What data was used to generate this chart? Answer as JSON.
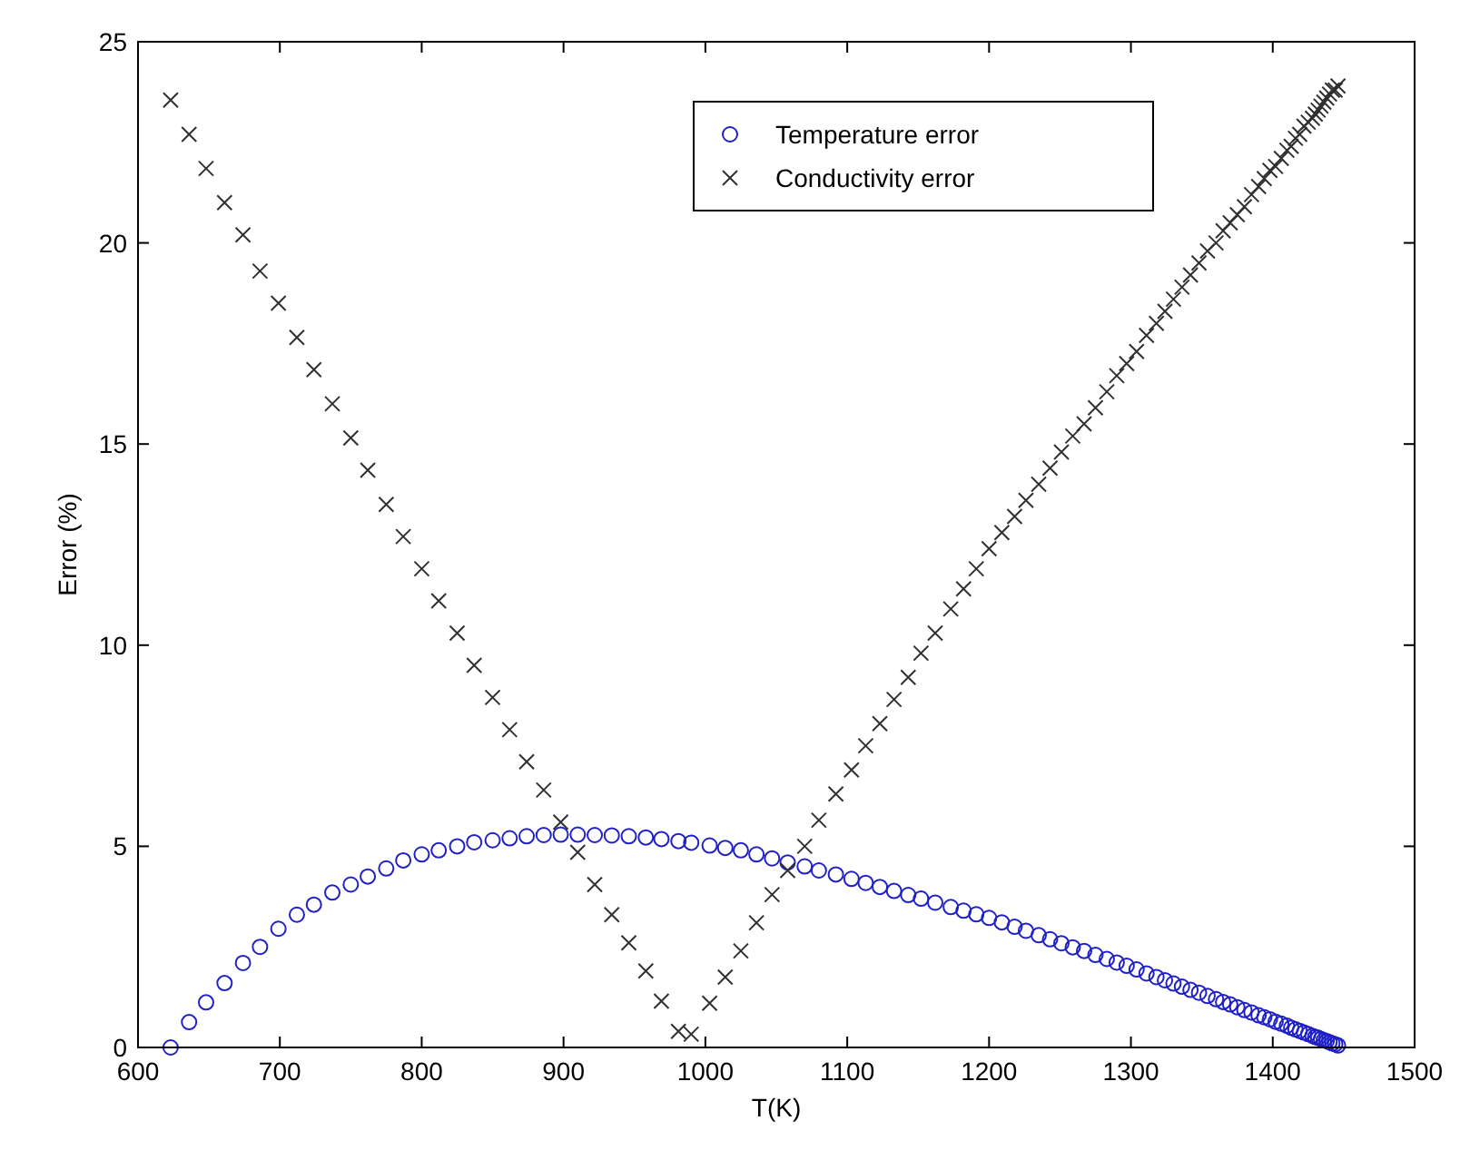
{
  "chart_data": {
    "type": "scatter",
    "xlabel": "T(K)",
    "ylabel": "Error (%)",
    "xlim": [
      600,
      1500
    ],
    "ylim": [
      0,
      25
    ],
    "xticks": [
      600,
      700,
      800,
      900,
      1000,
      1100,
      1200,
      1300,
      1400,
      1500
    ],
    "yticks": [
      0,
      5,
      10,
      15,
      20,
      25
    ],
    "grid": false,
    "legend": "top right",
    "x": [
      623,
      636,
      648,
      661,
      674,
      686,
      699,
      712,
      724,
      737,
      750,
      762,
      775,
      787,
      800,
      812,
      825,
      837,
      850,
      862,
      874,
      886,
      898,
      910,
      922,
      934,
      946,
      958,
      969,
      981,
      990,
      1003,
      1014,
      1025,
      1036,
      1047,
      1058,
      1070,
      1080,
      1092,
      1103,
      1113,
      1123,
      1133,
      1143,
      1152,
      1162,
      1173,
      1182,
      1191,
      1200,
      1209,
      1218,
      1226,
      1235,
      1243,
      1251,
      1259,
      1267,
      1275,
      1283,
      1290,
      1297,
      1304,
      1311,
      1318,
      1324,
      1330,
      1336,
      1342,
      1348,
      1354,
      1360,
      1365,
      1370,
      1375,
      1380,
      1385,
      1390,
      1394,
      1398,
      1402,
      1406,
      1410,
      1413,
      1416,
      1419,
      1422,
      1425,
      1428,
      1430,
      1432,
      1434,
      1436,
      1438,
      1440,
      1442,
      1444,
      1446
    ],
    "series": [
      {
        "name": "Temperature error",
        "color": "#2020c8",
        "marker": "circle",
        "values": [
          0.0,
          0.63,
          1.12,
          1.6,
          2.1,
          2.5,
          2.95,
          3.3,
          3.55,
          3.85,
          4.05,
          4.25,
          4.45,
          4.65,
          4.8,
          4.9,
          5.0,
          5.1,
          5.15,
          5.2,
          5.25,
          5.28,
          5.29,
          5.29,
          5.28,
          5.27,
          5.25,
          5.22,
          5.18,
          5.13,
          5.09,
          5.02,
          4.96,
          4.9,
          4.8,
          4.7,
          4.6,
          4.5,
          4.4,
          4.3,
          4.19,
          4.09,
          3.99,
          3.89,
          3.79,
          3.7,
          3.6,
          3.49,
          3.4,
          3.31,
          3.22,
          3.11,
          3.0,
          2.9,
          2.79,
          2.69,
          2.59,
          2.49,
          2.4,
          2.3,
          2.2,
          2.11,
          2.03,
          1.94,
          1.84,
          1.75,
          1.67,
          1.59,
          1.51,
          1.43,
          1.36,
          1.28,
          1.2,
          1.13,
          1.07,
          1.0,
          0.93,
          0.87,
          0.8,
          0.75,
          0.7,
          0.64,
          0.59,
          0.54,
          0.49,
          0.45,
          0.41,
          0.37,
          0.33,
          0.29,
          0.26,
          0.24,
          0.21,
          0.18,
          0.16,
          0.13,
          0.1,
          0.08,
          0.05
        ]
      },
      {
        "name": "Conductivity error",
        "color": "#303030",
        "marker": "cross",
        "values": [
          23.55,
          22.7,
          21.85,
          21.0,
          20.2,
          19.3,
          18.5,
          17.65,
          16.85,
          16.0,
          15.15,
          14.35,
          13.5,
          12.7,
          11.9,
          11.1,
          10.3,
          9.5,
          8.7,
          7.9,
          7.1,
          6.4,
          5.6,
          4.85,
          4.05,
          3.3,
          2.6,
          1.9,
          1.15,
          0.4,
          0.33,
          1.1,
          1.75,
          2.4,
          3.1,
          3.8,
          4.4,
          5.0,
          5.65,
          6.3,
          6.9,
          7.5,
          8.05,
          8.65,
          9.2,
          9.8,
          10.3,
          10.9,
          11.4,
          11.9,
          12.4,
          12.8,
          13.2,
          13.6,
          14.0,
          14.4,
          14.8,
          15.2,
          15.5,
          15.9,
          16.3,
          16.7,
          17.0,
          17.3,
          17.7,
          18.0,
          18.3,
          18.6,
          18.9,
          19.2,
          19.5,
          19.8,
          20.0,
          20.3,
          20.5,
          20.7,
          20.9,
          21.2,
          21.4,
          21.6,
          21.8,
          21.9,
          22.1,
          22.3,
          22.4,
          22.6,
          22.7,
          22.9,
          23.0,
          23.1,
          23.2,
          23.3,
          23.4,
          23.5,
          23.6,
          23.7,
          23.8,
          23.8,
          23.9
        ]
      }
    ]
  }
}
